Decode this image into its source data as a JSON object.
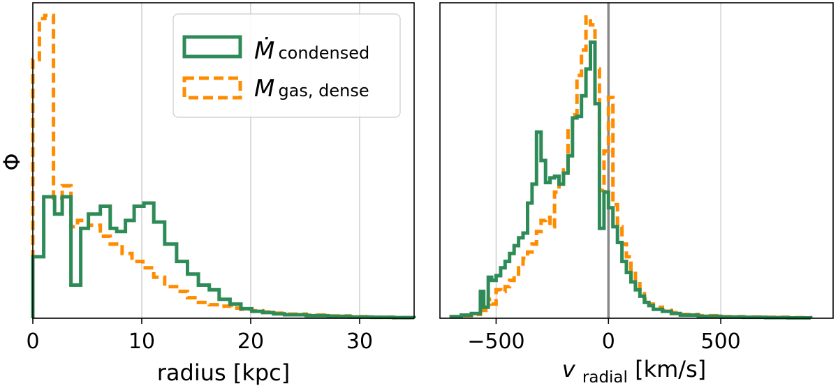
{
  "colors": {
    "condensed": "#2e8b57",
    "dense": "#ff8c00",
    "grid": "#c8c8c8",
    "zero_line": "#888888"
  },
  "chart_data": [
    {
      "type": "histogram",
      "xlabel": "radius [kpc]",
      "ylabel": "Φ",
      "xlim": [
        0,
        35
      ],
      "ylim": [
        0,
        1.0
      ],
      "xticks": [
        "0",
        "10",
        "20",
        "30"
      ],
      "xtick_values": [
        0,
        10,
        20,
        30
      ],
      "grid": "x",
      "legend_position": "top-right",
      "legend": {
        "condensed": {
          "main": "Ṁ",
          "sub": "condensed"
        },
        "dense": {
          "main": "M",
          "sub": "gas, dense"
        }
      },
      "series": [
        {
          "name": "condensed",
          "style": "solid",
          "edges": [
            0,
            1,
            2,
            2.7,
            3.5,
            4.4,
            5.1,
            6.2,
            7.1,
            7.7,
            8.5,
            9.3,
            10.2,
            11.1,
            12.1,
            13.2,
            14.2,
            15.2,
            16.2,
            17.1,
            18.1,
            19.1,
            20.1,
            21.1,
            22.1,
            23.1,
            25.1,
            27.1,
            29.1,
            31.1,
            33.1,
            35
          ],
          "values": [
            0.195,
            0.385,
            0.33,
            0.385,
            0.105,
            0.285,
            0.33,
            0.355,
            0.285,
            0.275,
            0.31,
            0.355,
            0.365,
            0.305,
            0.235,
            0.18,
            0.14,
            0.105,
            0.09,
            0.06,
            0.045,
            0.03,
            0.022,
            0.018,
            0.014,
            0.011,
            0.008,
            0.006,
            0.004,
            0.003,
            0.002
          ]
        },
        {
          "name": "dense",
          "style": "dashed",
          "edges": [
            0,
            0.6,
            1.1,
            1.9,
            2.7,
            3.5,
            4.1,
            5.1,
            6.2,
            7.1,
            8.2,
            9.1,
            10.1,
            11.1,
            12.1,
            13.2,
            14.2,
            15.2,
            16.2,
            17.2,
            18.2,
            19.1,
            20.1,
            21.1,
            22.1,
            23.1,
            25.1,
            27.1,
            29.1,
            31.1,
            33.1,
            35
          ],
          "values": [
            0.82,
            0.95,
            0.96,
            0.38,
            0.42,
            0.29,
            0.31,
            0.295,
            0.26,
            0.235,
            0.205,
            0.18,
            0.16,
            0.13,
            0.1,
            0.085,
            0.065,
            0.05,
            0.043,
            0.038,
            0.032,
            0.028,
            0.024,
            0.02,
            0.016,
            0.013,
            0.01,
            0.007,
            0.005,
            0.003,
            0.002
          ]
        }
      ]
    },
    {
      "type": "histogram",
      "xlabel": {
        "main": "v",
        "sub": "radial",
        "rest": " [km/s]"
      },
      "xlim": [
        -750,
        1000
      ],
      "ylim": [
        0,
        1.0
      ],
      "xticks": [
        "−500",
        "0",
        "500"
      ],
      "xtick_values": [
        -500,
        0,
        500
      ],
      "grid": "x",
      "vline": 0,
      "series": [
        {
          "name": "condensed",
          "style": "solid",
          "edges": [
            -700,
            -655,
            -610,
            -570,
            -555,
            -535,
            -520,
            -500,
            -480,
            -460,
            -440,
            -420,
            -400,
            -380,
            -360,
            -340,
            -320,
            -300,
            -280,
            -260,
            -240,
            -220,
            -200,
            -180,
            -160,
            -140,
            -120,
            -100,
            -80,
            -60,
            -40,
            -20,
            0,
            20,
            40,
            60,
            80,
            100,
            120,
            140,
            160,
            180,
            200,
            240,
            280,
            320,
            400,
            500,
            600,
            700,
            800,
            900
          ],
          "values": [
            0.005,
            0.01,
            0.015,
            0.085,
            0.035,
            0.13,
            0.12,
            0.135,
            0.16,
            0.18,
            0.205,
            0.23,
            0.255,
            0.27,
            0.365,
            0.425,
            0.59,
            0.5,
            0.43,
            0.445,
            0.45,
            0.425,
            0.46,
            0.515,
            0.635,
            0.64,
            0.705,
            0.79,
            0.875,
            0.68,
            0.285,
            0.4,
            0.35,
            0.29,
            0.24,
            0.18,
            0.145,
            0.115,
            0.09,
            0.07,
            0.05,
            0.04,
            0.028,
            0.022,
            0.015,
            0.01,
            0.006,
            0.004,
            0.003,
            0.002,
            0.001
          ]
        },
        {
          "name": "dense",
          "style": "dashed",
          "edges": [
            -700,
            -655,
            -610,
            -570,
            -555,
            -535,
            -520,
            -500,
            -480,
            -460,
            -440,
            -420,
            -400,
            -380,
            -360,
            -340,
            -320,
            -300,
            -280,
            -260,
            -240,
            -220,
            -200,
            -180,
            -160,
            -140,
            -120,
            -100,
            -80,
            -60,
            -40,
            -20,
            0,
            20,
            40,
            60,
            80,
            100,
            120,
            140,
            160,
            180,
            200,
            240,
            280,
            320,
            400,
            500,
            600,
            700,
            800,
            900
          ],
          "values": [
            0.005,
            0.008,
            0.012,
            0.04,
            0.025,
            0.06,
            0.045,
            0.09,
            0.085,
            0.1,
            0.12,
            0.14,
            0.16,
            0.19,
            0.21,
            0.235,
            0.275,
            0.31,
            0.32,
            0.29,
            0.4,
            0.445,
            0.47,
            0.6,
            0.645,
            0.77,
            0.85,
            0.955,
            0.93,
            0.79,
            0.405,
            0.53,
            0.7,
            0.36,
            0.29,
            0.235,
            0.195,
            0.15,
            0.115,
            0.085,
            0.06,
            0.045,
            0.035,
            0.025,
            0.018,
            0.012,
            0.008,
            0.005,
            0.004,
            0.003,
            0.002
          ]
        }
      ]
    }
  ]
}
